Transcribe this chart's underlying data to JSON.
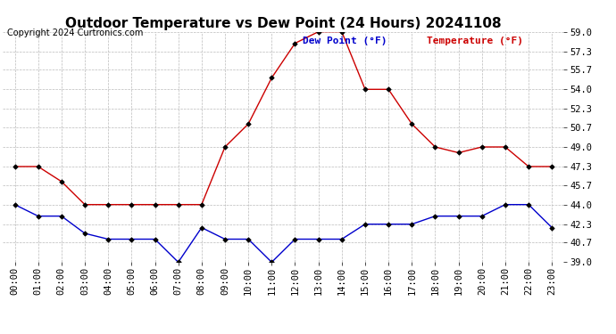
{
  "title": "Outdoor Temperature vs Dew Point (24 Hours) 20241108",
  "copyright": "Copyright 2024 Curtronics.com",
  "legend_dew": "Dew Point (°F)",
  "legend_temp": "Temperature (°F)",
  "hours": [
    "00:00",
    "01:00",
    "02:00",
    "03:00",
    "04:00",
    "05:00",
    "06:00",
    "07:00",
    "08:00",
    "09:00",
    "10:00",
    "11:00",
    "12:00",
    "13:00",
    "14:00",
    "15:00",
    "16:00",
    "17:00",
    "18:00",
    "19:00",
    "20:00",
    "21:00",
    "22:00",
    "23:00"
  ],
  "temperature": [
    47.3,
    47.3,
    46.0,
    44.0,
    44.0,
    44.0,
    44.0,
    44.0,
    44.0,
    49.0,
    51.0,
    55.0,
    58.0,
    59.0,
    59.0,
    54.0,
    54.0,
    51.0,
    49.0,
    48.5,
    49.0,
    49.0,
    47.3,
    47.3
  ],
  "dew_point": [
    44.0,
    43.0,
    43.0,
    41.5,
    41.0,
    41.0,
    41.0,
    39.0,
    42.0,
    41.0,
    41.0,
    39.0,
    41.0,
    41.0,
    41.0,
    42.3,
    42.3,
    42.3,
    43.0,
    43.0,
    43.0,
    44.0,
    44.0,
    42.0
  ],
  "ylim_min": 39.0,
  "ylim_max": 59.0,
  "yticks": [
    39.0,
    40.7,
    42.3,
    44.0,
    45.7,
    47.3,
    49.0,
    50.7,
    52.3,
    54.0,
    55.7,
    57.3,
    59.0
  ],
  "temp_color": "#cc0000",
  "dew_color": "#0000cc",
  "bg_color": "#ffffff",
  "grid_color": "#bbbbbb",
  "title_color": "#000000",
  "copyright_color": "#000000",
  "title_fontsize": 11,
  "copyright_fontsize": 7,
  "tick_fontsize": 7.5,
  "legend_fontsize": 8
}
